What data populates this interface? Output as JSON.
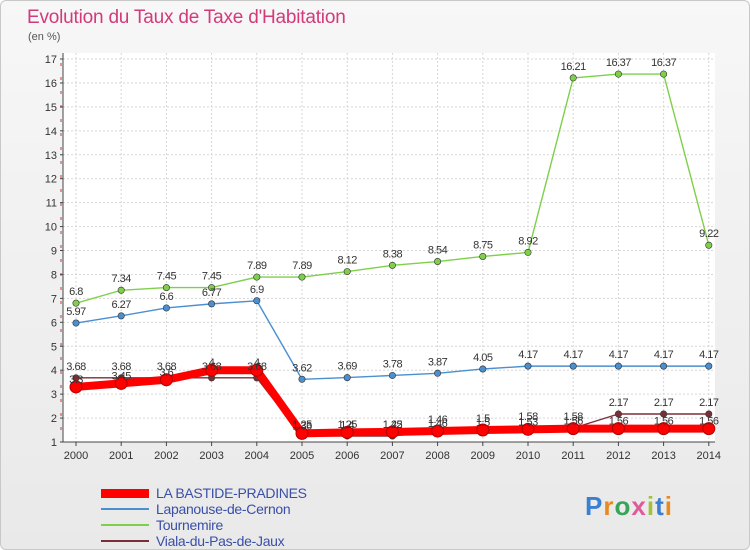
{
  "title": "Evolution du Taux de Taxe d'Habitation",
  "unit_label": "(en %)",
  "brand": {
    "text": "Proxiti",
    "colors": [
      "#3b7fd0",
      "#e98a1e",
      "#3aa35a",
      "#e05a9a",
      "#a2c23a",
      "#3b7fd0",
      "#e98a1e"
    ]
  },
  "chart_data": {
    "type": "line",
    "title": "Evolution du Taux de Taxe d'Habitation",
    "ylabel": "(en %)",
    "xlabel": "",
    "x": [
      "2000",
      "2001",
      "2002",
      "2003",
      "2004",
      "2005",
      "2006",
      "2007",
      "2008",
      "2009",
      "2010",
      "2011",
      "2012",
      "2013",
      "2014"
    ],
    "ylim": [
      1,
      17
    ],
    "yticks": [
      "1",
      "2",
      "3",
      "4",
      "5",
      "6",
      "7",
      "8",
      "9",
      "10",
      "11",
      "12",
      "13",
      "14",
      "15",
      "16",
      "17"
    ],
    "grid": true,
    "legend_position": "bottom-left",
    "series": [
      {
        "name": "LA BASTIDE-PRADINES",
        "color": "#ff0000",
        "values": [
          3.3,
          3.45,
          3.6,
          4,
          4,
          1.36,
          1.4,
          1.42,
          1.46,
          1.5,
          1.53,
          1.56,
          1.56,
          1.56,
          1.56
        ],
        "labels": [
          "3.3",
          "3.45",
          "3.6",
          "4",
          "4",
          "1.36",
          "1.4",
          "1.42",
          "1.46",
          "1.5",
          "1.53",
          "1.56",
          "1.56",
          "1.56",
          "1.56"
        ]
      },
      {
        "name": "Lapanouse-de-Cernon",
        "color": "#4a8fd0",
        "values": [
          5.97,
          6.27,
          6.6,
          6.77,
          6.9,
          3.62,
          3.69,
          3.78,
          3.87,
          4.05,
          4.17,
          4.17,
          4.17,
          4.17,
          4.17
        ],
        "labels": [
          "5.97",
          "6.27",
          "6.6",
          "6.77",
          "6.9",
          "3.62",
          "3.69",
          "3.78",
          "3.87",
          "4.05",
          "4.17",
          "4.17",
          "4.17",
          "4.17",
          "4.17"
        ]
      },
      {
        "name": "Tournemire",
        "color": "#7ed04a",
        "values": [
          6.8,
          7.34,
          7.45,
          7.45,
          7.89,
          7.89,
          8.12,
          8.38,
          8.54,
          8.75,
          8.92,
          16.21,
          16.37,
          16.37,
          9.22
        ],
        "labels": [
          "6.8",
          "7.34",
          "7.45",
          "7.45",
          "7.89",
          "7.89",
          "8.12",
          "8.38",
          "8.54",
          "8.75",
          "8.92",
          "16.21",
          "16.37",
          "16.37",
          "9.22"
        ]
      },
      {
        "name": "Viala-du-Pas-de-Jaux",
        "color": "#7a2f36",
        "values": [
          3.68,
          3.68,
          3.68,
          3.68,
          3.68,
          1.25,
          1.25,
          1.25,
          1.46,
          1.5,
          1.58,
          1.58,
          2.17,
          2.17,
          2.17
        ],
        "labels": [
          "3.68",
          "3.68",
          "3.68",
          "3.68",
          "3.68",
          "1.25",
          "1.25",
          "1.25",
          "1.46",
          "1.5",
          "1.58",
          "1.58",
          "2.17",
          "2.17",
          "2.17"
        ]
      }
    ]
  }
}
